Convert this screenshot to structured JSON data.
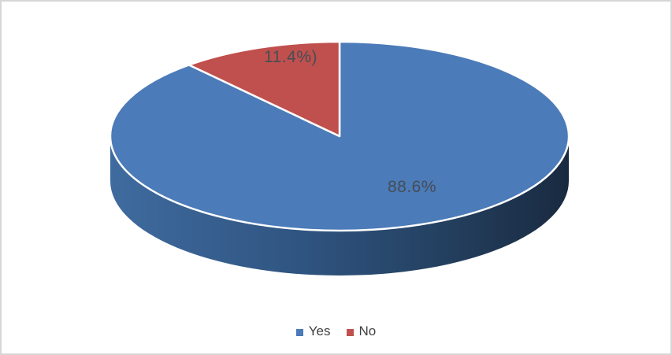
{
  "chart": {
    "background_color": "#ffffff",
    "border_color": "#d6d6d6"
  },
  "chart_data": {
    "type": "pie",
    "projection": "3d",
    "title": "",
    "categories": [
      "Yes",
      "No"
    ],
    "values": [
      88.6,
      11.4
    ],
    "unit": "percent",
    "data_labels": [
      "88.6%",
      "11.4%)"
    ],
    "slice_colors": [
      "#4b7bb8",
      "#c0504d"
    ],
    "side_shade_colors": [
      "#3f6b9f",
      "#2f5480",
      "#233f5e",
      "#192a40"
    ],
    "separator_color": "#ffffff",
    "label_color": "#454d57",
    "start_angle_deg": 0,
    "direction": "clockwise",
    "legend": {
      "position": "bottom",
      "entries": [
        "Yes",
        "No"
      ]
    }
  },
  "labels": {
    "yes_slice": "88.6%",
    "no_slice": "11.4%)"
  },
  "legend": {
    "items": [
      {
        "label": "Yes",
        "color": "#4b7bb8"
      },
      {
        "label": "No",
        "color": "#c0504d"
      }
    ]
  }
}
